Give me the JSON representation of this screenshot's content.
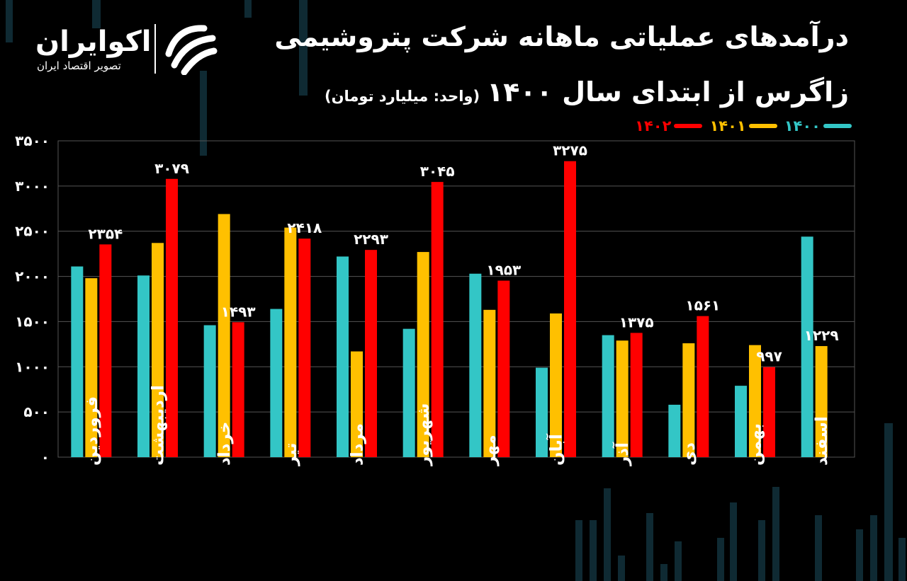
{
  "header": {
    "title_line1": "درآمدهای عملیاتی ماهانه شرکت پتروشیمی",
    "title_line2": "زاگرس از ابتدای سال ۱۴۰۰",
    "unit_note": "(واحد: میلیارد تومان)"
  },
  "logo": {
    "name": "اکوایران",
    "tagline": "تصویر اقتصاد ایران"
  },
  "chart_data": {
    "type": "bar",
    "categories": [
      "فروردین",
      "اردیبهشت",
      "خرداد",
      "تیر",
      "مرداد",
      "شهریور",
      "مهر",
      "آبان",
      "آذر",
      "دی",
      "بهمن",
      "اسفند"
    ],
    "series": [
      {
        "name": "۱۴۰۰",
        "color": "#33c6c6",
        "values": [
          2110,
          2010,
          1460,
          1640,
          2220,
          1420,
          2030,
          990,
          1350,
          580,
          790,
          2440
        ]
      },
      {
        "name": "۱۴۰۱",
        "color": "#ffc000",
        "values": [
          1980,
          2370,
          2690,
          2540,
          1170,
          2270,
          1630,
          1590,
          1290,
          1260,
          1240,
          1229
        ]
      },
      {
        "name": "۱۴۰۲",
        "color": "#ff0000",
        "values": [
          2354,
          3079,
          1493,
          2418,
          2293,
          3045,
          1953,
          3275,
          1375,
          1561,
          997,
          null
        ]
      }
    ],
    "data_labels": [
      {
        "category_index": 0,
        "series_index": 2,
        "text": "۲۳۵۴"
      },
      {
        "category_index": 1,
        "series_index": 2,
        "text": "۳۰۷۹"
      },
      {
        "category_index": 2,
        "series_index": 2,
        "text": "۱۴۹۳"
      },
      {
        "category_index": 3,
        "series_index": 2,
        "text": "۲۴۱۸"
      },
      {
        "category_index": 4,
        "series_index": 2,
        "text": "۲۲۹۳"
      },
      {
        "category_index": 5,
        "series_index": 2,
        "text": "۳۰۴۵"
      },
      {
        "category_index": 6,
        "series_index": 2,
        "text": "۱۹۵۳"
      },
      {
        "category_index": 7,
        "series_index": 2,
        "text": "۳۲۷۵"
      },
      {
        "category_index": 8,
        "series_index": 2,
        "text": "۱۳۷۵"
      },
      {
        "category_index": 9,
        "series_index": 2,
        "text": "۱۵۶۱"
      },
      {
        "category_index": 10,
        "series_index": 2,
        "text": "۹۹۷"
      },
      {
        "category_index": 11,
        "series_index": 1,
        "text": "۱۲۲۹"
      }
    ],
    "ylim": [
      0,
      3500
    ],
    "y_ticks": [
      0,
      500,
      1000,
      1500,
      2000,
      2500,
      3000,
      3500
    ],
    "y_tick_labels": [
      "۰",
      "۵۰۰",
      "۱۰۰۰",
      "۱۵۰۰",
      "۲۰۰۰",
      "۲۵۰۰",
      "۳۰۰۰",
      "۳۵۰۰"
    ],
    "grid": true,
    "legend_position": "top-right"
  }
}
